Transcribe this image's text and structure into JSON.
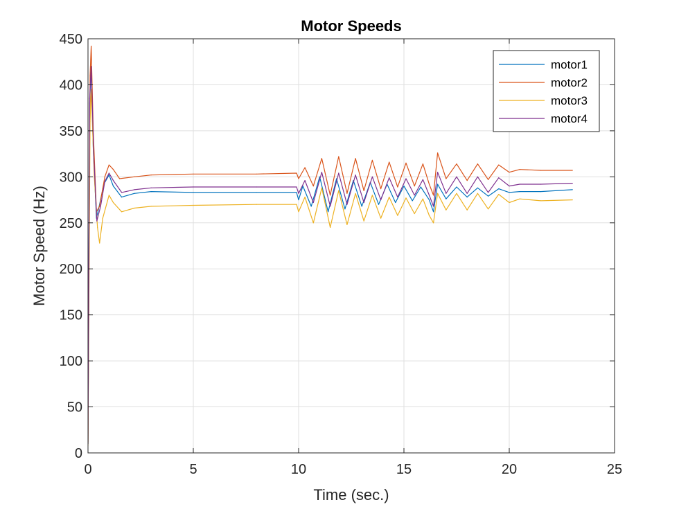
{
  "chart_data": {
    "type": "line",
    "title": "Motor Speeds",
    "xlabel": "Time (sec.)",
    "ylabel": "Motor Speed (Hz)",
    "xlim": [
      0,
      25
    ],
    "ylim": [
      0,
      450
    ],
    "xticks": [
      0,
      5,
      10,
      15,
      20,
      25
    ],
    "yticks": [
      0,
      50,
      100,
      150,
      200,
      250,
      300,
      350,
      400,
      450
    ],
    "grid": true,
    "legend_position": "top-right",
    "series": [
      {
        "name": "motor1",
        "color": "#0072BD",
        "points": [
          [
            0,
            10
          ],
          [
            0.08,
            380
          ],
          [
            0.15,
            418
          ],
          [
            0.25,
            330
          ],
          [
            0.4,
            255
          ],
          [
            0.55,
            270
          ],
          [
            0.75,
            292
          ],
          [
            1.0,
            302
          ],
          [
            1.2,
            290
          ],
          [
            1.6,
            278
          ],
          [
            2.2,
            282
          ],
          [
            3,
            284
          ],
          [
            5,
            283
          ],
          [
            8,
            283
          ],
          [
            9.9,
            283
          ],
          [
            10.0,
            275
          ],
          [
            10.2,
            290
          ],
          [
            10.6,
            268
          ],
          [
            11.0,
            300
          ],
          [
            11.4,
            262
          ],
          [
            11.8,
            298
          ],
          [
            12.2,
            265
          ],
          [
            12.6,
            296
          ],
          [
            13.0,
            268
          ],
          [
            13.4,
            294
          ],
          [
            13.8,
            270
          ],
          [
            14.2,
            292
          ],
          [
            14.6,
            272
          ],
          [
            15.0,
            290
          ],
          [
            15.4,
            274
          ],
          [
            15.8,
            289
          ],
          [
            16.2,
            275
          ],
          [
            16.4,
            262
          ],
          [
            16.6,
            292
          ],
          [
            17.0,
            276
          ],
          [
            17.5,
            289
          ],
          [
            18.0,
            278
          ],
          [
            18.5,
            288
          ],
          [
            19.0,
            279
          ],
          [
            19.5,
            287
          ],
          [
            20.0,
            283
          ],
          [
            20.5,
            284
          ],
          [
            21.5,
            284
          ],
          [
            23,
            286
          ]
        ]
      },
      {
        "name": "motor2",
        "color": "#D95319",
        "points": [
          [
            0,
            12
          ],
          [
            0.1,
            410
          ],
          [
            0.15,
            442
          ],
          [
            0.25,
            350
          ],
          [
            0.4,
            262
          ],
          [
            0.55,
            268
          ],
          [
            0.8,
            300
          ],
          [
            1.0,
            313
          ],
          [
            1.2,
            308
          ],
          [
            1.5,
            298
          ],
          [
            2.2,
            300
          ],
          [
            3,
            302
          ],
          [
            5,
            303
          ],
          [
            8,
            303
          ],
          [
            9.9,
            304
          ],
          [
            10.0,
            298
          ],
          [
            10.3,
            310
          ],
          [
            10.7,
            290
          ],
          [
            11.1,
            320
          ],
          [
            11.5,
            280
          ],
          [
            11.9,
            322
          ],
          [
            12.3,
            282
          ],
          [
            12.7,
            320
          ],
          [
            13.1,
            285
          ],
          [
            13.5,
            318
          ],
          [
            13.9,
            287
          ],
          [
            14.3,
            316
          ],
          [
            14.7,
            289
          ],
          [
            15.1,
            315
          ],
          [
            15.5,
            290
          ],
          [
            15.9,
            314
          ],
          [
            16.2,
            292
          ],
          [
            16.4,
            280
          ],
          [
            16.6,
            326
          ],
          [
            17.0,
            298
          ],
          [
            17.5,
            314
          ],
          [
            18.0,
            296
          ],
          [
            18.5,
            314
          ],
          [
            19.0,
            297
          ],
          [
            19.5,
            313
          ],
          [
            20.0,
            305
          ],
          [
            20.5,
            308
          ],
          [
            21.5,
            307
          ],
          [
            23,
            307
          ]
        ]
      },
      {
        "name": "motor3",
        "color": "#EDB120",
        "points": [
          [
            0,
            8
          ],
          [
            0.1,
            360
          ],
          [
            0.15,
            395
          ],
          [
            0.3,
            300
          ],
          [
            0.45,
            245
          ],
          [
            0.55,
            228
          ],
          [
            0.7,
            255
          ],
          [
            1.0,
            280
          ],
          [
            1.2,
            272
          ],
          [
            1.6,
            262
          ],
          [
            2.2,
            266
          ],
          [
            3,
            268
          ],
          [
            5,
            269
          ],
          [
            8,
            270
          ],
          [
            9.9,
            270
          ],
          [
            10.0,
            262
          ],
          [
            10.3,
            278
          ],
          [
            10.7,
            250
          ],
          [
            11.1,
            288
          ],
          [
            11.5,
            245
          ],
          [
            11.9,
            285
          ],
          [
            12.3,
            248
          ],
          [
            12.7,
            282
          ],
          [
            13.1,
            252
          ],
          [
            13.5,
            280
          ],
          [
            13.9,
            255
          ],
          [
            14.3,
            278
          ],
          [
            14.7,
            258
          ],
          [
            15.1,
            277
          ],
          [
            15.5,
            260
          ],
          [
            15.9,
            276
          ],
          [
            16.2,
            258
          ],
          [
            16.4,
            250
          ],
          [
            16.6,
            282
          ],
          [
            17.0,
            264
          ],
          [
            17.5,
            282
          ],
          [
            18.0,
            264
          ],
          [
            18.5,
            282
          ],
          [
            19.0,
            265
          ],
          [
            19.5,
            281
          ],
          [
            20.0,
            272
          ],
          [
            20.5,
            276
          ],
          [
            21.5,
            274
          ],
          [
            23,
            275
          ]
        ]
      },
      {
        "name": "motor4",
        "color": "#7E2F8E",
        "points": [
          [
            0,
            10
          ],
          [
            0.08,
            385
          ],
          [
            0.15,
            420
          ],
          [
            0.28,
            320
          ],
          [
            0.42,
            252
          ],
          [
            0.6,
            268
          ],
          [
            0.8,
            295
          ],
          [
            1.0,
            304
          ],
          [
            1.2,
            296
          ],
          [
            1.6,
            283
          ],
          [
            2.2,
            286
          ],
          [
            3,
            288
          ],
          [
            5,
            289
          ],
          [
            8,
            289
          ],
          [
            9.9,
            289
          ],
          [
            10.0,
            282
          ],
          [
            10.3,
            296
          ],
          [
            10.7,
            272
          ],
          [
            11.1,
            305
          ],
          [
            11.5,
            268
          ],
          [
            11.9,
            304
          ],
          [
            12.3,
            270
          ],
          [
            12.7,
            302
          ],
          [
            13.1,
            272
          ],
          [
            13.5,
            300
          ],
          [
            13.9,
            275
          ],
          [
            14.3,
            299
          ],
          [
            14.7,
            278
          ],
          [
            15.1,
            298
          ],
          [
            15.5,
            280
          ],
          [
            15.9,
            297
          ],
          [
            16.2,
            280
          ],
          [
            16.4,
            268
          ],
          [
            16.6,
            305
          ],
          [
            17.0,
            282
          ],
          [
            17.5,
            300
          ],
          [
            18.0,
            282
          ],
          [
            18.5,
            300
          ],
          [
            19.0,
            283
          ],
          [
            19.5,
            299
          ],
          [
            20.0,
            290
          ],
          [
            20.5,
            292
          ],
          [
            21.5,
            292
          ],
          [
            23,
            293
          ]
        ]
      }
    ]
  }
}
